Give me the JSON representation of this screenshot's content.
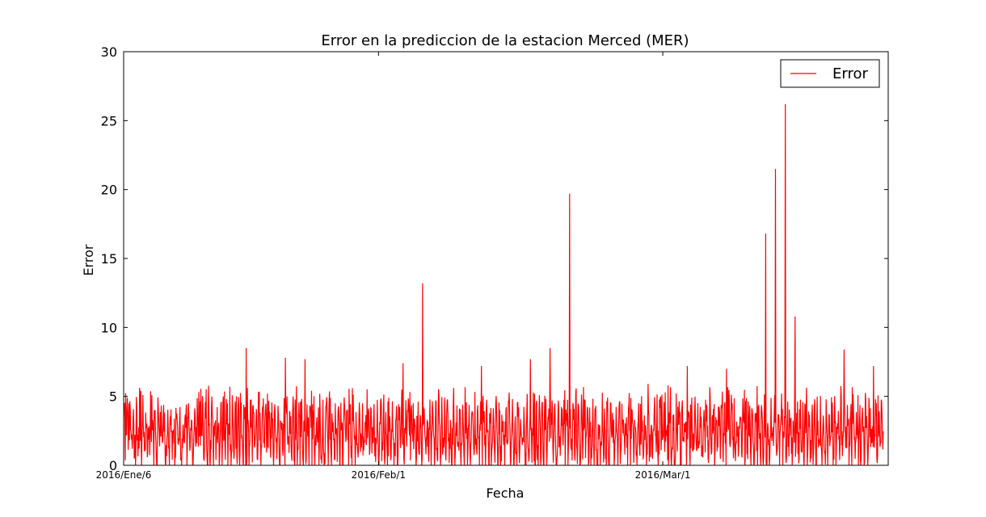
{
  "chart_data": {
    "type": "line",
    "title": "Error en la prediccion de la estacion Merced (MER)",
    "xlabel": "Fecha",
    "ylabel": "Error",
    "ylim": [
      0,
      30
    ],
    "yticks": [
      "0",
      "5",
      "10",
      "15",
      "20",
      "25",
      "30"
    ],
    "xticks": [
      {
        "label": "2016/Ene/6",
        "date": "2016-01-06"
      },
      {
        "label": "2016/Feb/1",
        "date": "2016-02-01"
      },
      {
        "label": "2016/Mar/1",
        "date": "2016-03-01"
      }
    ],
    "xlim": [
      "2016-01-06",
      "2016-03-24"
    ],
    "grid": false,
    "legend": {
      "position": "top-right"
    },
    "series": [
      {
        "name": "Error",
        "color": "#ff0000",
        "sampling": "hourly",
        "start": "2016-01-06 00:00",
        "peaks": [
          {
            "date": "2016-01-18",
            "value": 8.5
          },
          {
            "date": "2016-01-22",
            "value": 7.8
          },
          {
            "date": "2016-01-24",
            "value": 7.7
          },
          {
            "date": "2016-02-03",
            "value": 7.4
          },
          {
            "date": "2016-02-05",
            "value": 13.2
          },
          {
            "date": "2016-02-11",
            "value": 7.2
          },
          {
            "date": "2016-02-16",
            "value": 7.7
          },
          {
            "date": "2016-02-18",
            "value": 8.5
          },
          {
            "date": "2016-02-20",
            "value": 19.7
          },
          {
            "date": "2016-02-28",
            "value": 5.9
          },
          {
            "date": "2016-03-03",
            "value": 7.2
          },
          {
            "date": "2016-03-07",
            "value": 7.0
          },
          {
            "date": "2016-03-11",
            "value": 16.8
          },
          {
            "date": "2016-03-12",
            "value": 21.5
          },
          {
            "date": "2016-03-13",
            "value": 26.2
          },
          {
            "date": "2016-03-14",
            "value": 10.8
          },
          {
            "date": "2016-03-19",
            "value": 8.4
          },
          {
            "date": "2016-03-22",
            "value": 7.2
          }
        ],
        "baseline_range": [
          0,
          6
        ]
      }
    ]
  }
}
